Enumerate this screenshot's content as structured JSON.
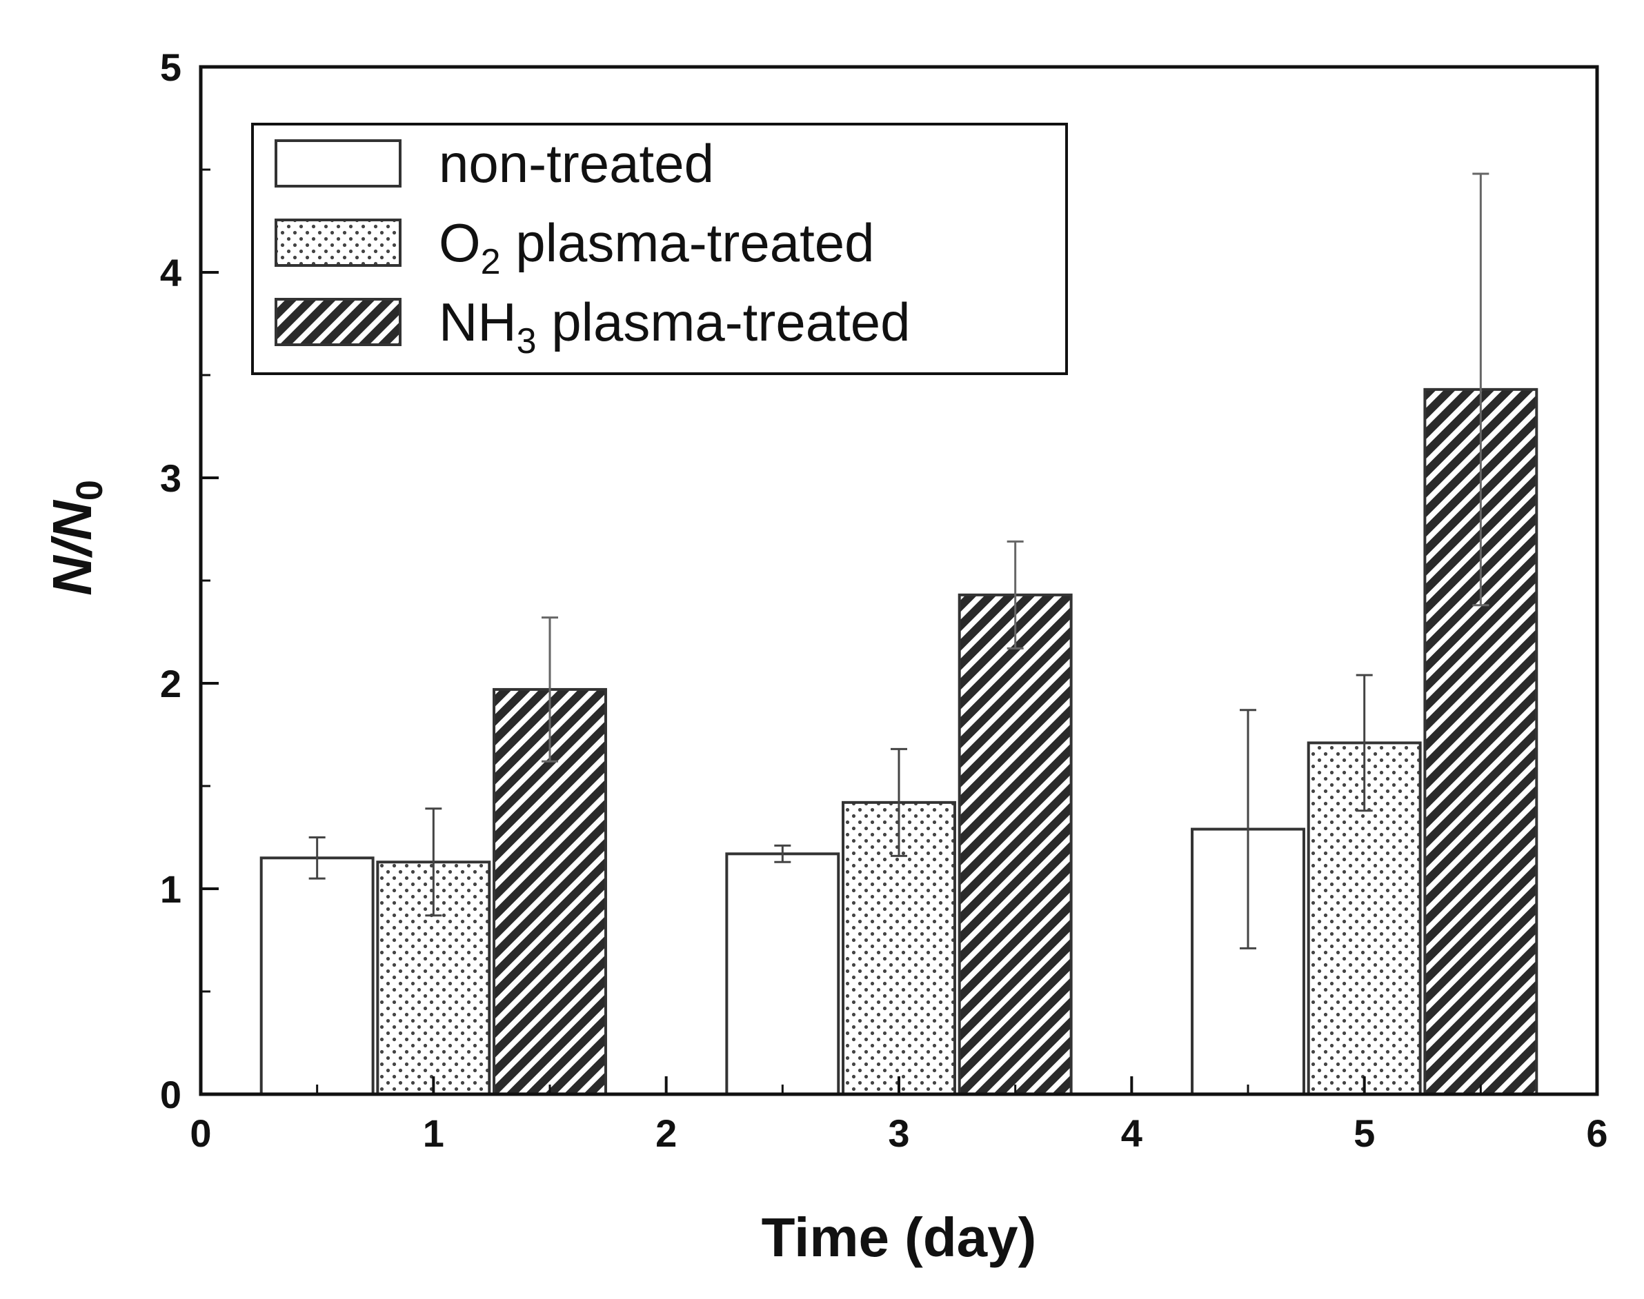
{
  "chart_data": {
    "type": "bar",
    "title": "",
    "xlabel": "Time (day)",
    "ylabel": "N/N",
    "ylabel_sub": "0",
    "xlim": [
      0,
      6
    ],
    "ylim": [
      0,
      5
    ],
    "xticks": [
      0,
      1,
      2,
      3,
      4,
      5,
      6
    ],
    "yticks": [
      0,
      1,
      2,
      3,
      4,
      5
    ],
    "categories": [
      1,
      3,
      5
    ],
    "legend_position": "top-left",
    "series": [
      {
        "name": "non-treated",
        "legend_main": "non-treated",
        "legend_sub": "",
        "legend_rest": "",
        "pattern": "blank",
        "x": [
          0.5,
          2.5,
          4.5
        ],
        "values": [
          1.15,
          1.17,
          1.29
        ],
        "errors": [
          0.1,
          0.04,
          0.58
        ]
      },
      {
        "name": "O2 plasma-treated",
        "legend_main": "O",
        "legend_sub": "2",
        "legend_rest": " plasma-treated",
        "pattern": "dots",
        "x": [
          1.0,
          3.0,
          5.0
        ],
        "values": [
          1.13,
          1.42,
          1.71
        ],
        "errors": [
          0.26,
          0.26,
          0.33
        ]
      },
      {
        "name": "NH3 plasma-treated",
        "legend_main": "NH",
        "legend_sub": "3",
        "legend_rest": " plasma-treated",
        "pattern": "hatch",
        "x": [
          1.5,
          3.5,
          5.5
        ],
        "values": [
          1.97,
          2.43,
          3.43
        ],
        "errors": [
          0.35,
          0.26,
          1.05
        ]
      }
    ]
  },
  "colors": {
    "axis": "#111111",
    "bar_fill": "#ffffff",
    "bar_edge": "#333333",
    "hatch_fill": "#2a2a2a",
    "dot_fill": "#444444"
  }
}
